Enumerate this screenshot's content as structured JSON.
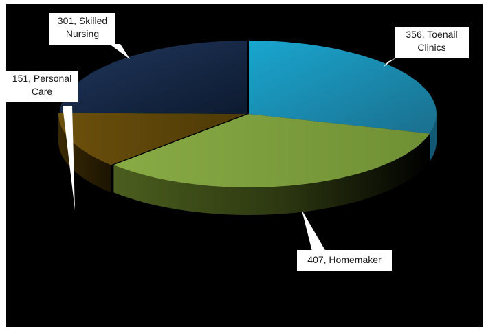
{
  "chart_data": {
    "type": "pie",
    "style": "3d-exploded-perspective",
    "legend": "bottom (cut off)",
    "slices": [
      {
        "value": 356,
        "label": "Toenail Clinics",
        "data_label": [
          "356, Toenail",
          "Clinics"
        ],
        "color": "#2a9cc4"
      },
      {
        "value": 407,
        "label": "Homemaker",
        "data_label": [
          "407, Homemaker"
        ],
        "color": "#7a9a3a"
      },
      {
        "value": 151,
        "label": "Personal Care",
        "data_label": [
          "151, Personal",
          "Care"
        ],
        "color": "#6a4e0c"
      },
      {
        "value": 301,
        "label": "Skilled Nursing",
        "data_label": [
          "301, Skilled",
          "Nursing"
        ],
        "color": "#1e3354"
      }
    ]
  },
  "colors": {
    "background": "#000000",
    "toenail": "#2a9cc4",
    "homemaker": "#7a9a3a",
    "personal": "#6a4e0c",
    "skilled": "#1e3354"
  }
}
